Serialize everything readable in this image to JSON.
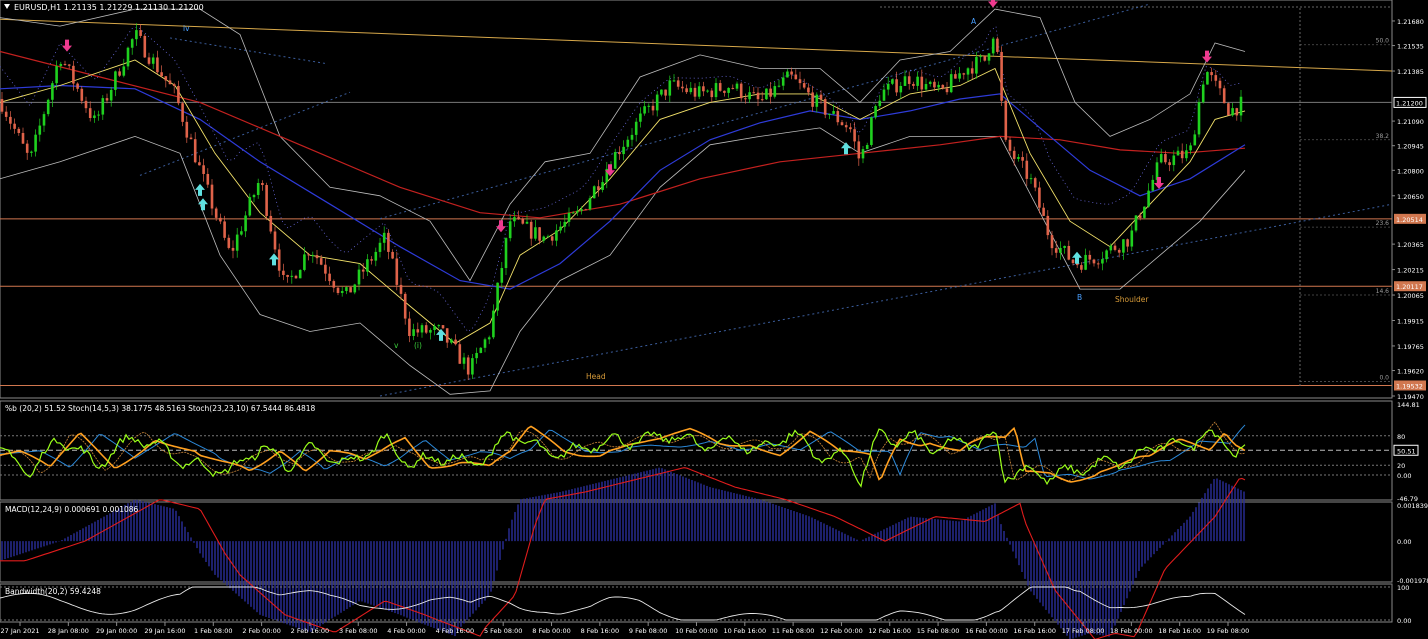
{
  "colors": {
    "background": "#000000",
    "frame": "#8a8a8a",
    "grid": "#404040",
    "bull": "#1fd11f",
    "bear": "#e0634a",
    "ma_fast": "#f3e26a",
    "ma_mid": "#2e3bd9",
    "ma_slow": "#c3211f",
    "bands": "#bdbdbd",
    "trend": "#d7a84a",
    "channel": "#3b5d9c",
    "level": "#d1774f",
    "arrow_up": "#5fe0e0",
    "arrow_down": "#ee3a8f",
    "fib_label": "#9b9b9b",
    "wave_label": "#4aa0ff",
    "pattern_label": "#d79b39",
    "pct_b": "#9aff1a",
    "stoch_fast": "#d08a3a",
    "stoch_slow": "#ffa020",
    "stoch_signal": "#2b88d8",
    "macd_hist": "#2a2f9a",
    "macd_signal": "#e01c1c",
    "bandwidth": "#e8e8e8"
  },
  "chart_data": [
    {
      "type": "line",
      "id": "price",
      "title": "EURUSD,H1  1.21135 1.21229 1.21130 1.21200",
      "symbol": "EURUSD,H1",
      "ohlc_header": [
        "1.21135",
        "1.21229",
        "1.21130",
        "1.21200"
      ],
      "y_ticks": [
        "1.21680",
        "1.21535",
        "1.21385",
        "1.21200",
        "1.21090",
        "1.20945",
        "1.20800",
        "1.20650",
        "1.20514",
        "1.20365",
        "1.20215",
        "1.20117",
        "1.20065",
        "1.19915",
        "1.19765",
        "1.19620",
        "1.19532",
        "1.19470"
      ],
      "ylim": [
        1.1947,
        1.2178
      ],
      "current_price": "1.21200",
      "price_levels": [
        {
          "label": "1.20514",
          "value": 1.20514
        },
        {
          "label": "1.20117",
          "value": 1.20117
        },
        {
          "label": "1.19532",
          "value": 1.19532
        }
      ],
      "fib_levels": [
        {
          "label": "50.0",
          "value": 1.2154
        },
        {
          "label": "38.2",
          "value": 1.2098
        },
        {
          "label": "23.6",
          "value": 1.20465
        },
        {
          "label": "14.6",
          "value": 1.20065
        },
        {
          "label": "0.0",
          "value": 1.19555
        }
      ],
      "x_labels": [
        "27 Jan 2021",
        "28 Jan 08:00",
        "29 Jan 00:00",
        "29 Jan 16:00",
        "1 Feb 08:00",
        "2 Feb 00:00",
        "2 Feb 16:00",
        "3 Feb 08:00",
        "4 Feb 00:00",
        "4 Feb 16:00",
        "5 Feb 08:00",
        "8 Feb 00:00",
        "8 Feb 16:00",
        "9 Feb 08:00",
        "10 Feb 00:00",
        "10 Feb 16:00",
        "11 Feb 08:00",
        "12 Feb 00:00",
        "12 Feb 16:00",
        "15 Feb 08:00",
        "16 Feb 00:00",
        "16 Feb 16:00",
        "17 Feb 08:00",
        "18 Feb 00:00",
        "18 Feb 16:00",
        "19 Feb 08:00"
      ],
      "annotations": [
        "iv",
        "v",
        "(i)",
        "A",
        "B",
        "Head",
        "Shoulder"
      ],
      "close_path": [
        [
          0,
          1.2122
        ],
        [
          30,
          1.2085
        ],
        [
          60,
          1.2148
        ],
        [
          95,
          1.2108
        ],
        [
          135,
          1.216
        ],
        [
          175,
          1.2125
        ],
        [
          200,
          1.208
        ],
        [
          230,
          1.203
        ],
        [
          260,
          1.2075
        ],
        [
          285,
          1.201
        ],
        [
          310,
          1.2035
        ],
        [
          345,
          1.2005
        ],
        [
          385,
          1.204
        ],
        [
          410,
          1.1985
        ],
        [
          440,
          1.1985
        ],
        [
          470,
          1.1962
        ],
        [
          490,
          1.1985
        ],
        [
          510,
          1.205
        ],
        [
          545,
          1.204
        ],
        [
          580,
          1.2055
        ],
        [
          610,
          1.2085
        ],
        [
          640,
          1.211
        ],
        [
          670,
          1.213
        ],
        [
          700,
          1.2125
        ],
        [
          730,
          1.213
        ],
        [
          760,
          1.212
        ],
        [
          790,
          1.2135
        ],
        [
          820,
          1.2118
        ],
        [
          850,
          1.2105
        ],
        [
          860,
          1.2085
        ],
        [
          880,
          1.2125
        ],
        [
          910,
          1.2135
        ],
        [
          940,
          1.2125
        ],
        [
          965,
          1.214
        ],
        [
          985,
          1.2145
        ],
        [
          995,
          1.2165
        ],
        [
          1005,
          1.2095
        ],
        [
          1030,
          1.2075
        ],
        [
          1050,
          1.204
        ],
        [
          1075,
          1.2025
        ],
        [
          1100,
          1.203
        ],
        [
          1130,
          1.204
        ],
        [
          1160,
          1.2085
        ],
        [
          1190,
          1.209
        ],
        [
          1205,
          1.214
        ],
        [
          1215,
          1.213
        ],
        [
          1230,
          1.2115
        ],
        [
          1245,
          1.212
        ]
      ],
      "ma_fast": [
        [
          0,
          1.212
        ],
        [
          60,
          1.213
        ],
        [
          135,
          1.2145
        ],
        [
          175,
          1.213
        ],
        [
          215,
          1.209
        ],
        [
          260,
          1.2055
        ],
        [
          310,
          1.203
        ],
        [
          360,
          1.2025
        ],
        [
          410,
          1.2
        ],
        [
          455,
          1.1978
        ],
        [
          490,
          1.199
        ],
        [
          520,
          1.203
        ],
        [
          560,
          1.2045
        ],
        [
          610,
          1.2075
        ],
        [
          660,
          1.211
        ],
        [
          710,
          1.212
        ],
        [
          760,
          1.2125
        ],
        [
          810,
          1.2125
        ],
        [
          860,
          1.211
        ],
        [
          910,
          1.2125
        ],
        [
          960,
          1.213
        ],
        [
          995,
          1.214
        ],
        [
          1030,
          1.209
        ],
        [
          1070,
          1.205
        ],
        [
          1110,
          1.2035
        ],
        [
          1150,
          1.206
        ],
        [
          1190,
          1.2085
        ],
        [
          1215,
          1.211
        ],
        [
          1245,
          1.2115
        ]
      ],
      "ma_mid": [
        [
          0,
          1.2128
        ],
        [
          60,
          1.213
        ],
        [
          135,
          1.2128
        ],
        [
          200,
          1.211
        ],
        [
          260,
          1.2085
        ],
        [
          330,
          1.206
        ],
        [
          400,
          1.2035
        ],
        [
          460,
          1.2015
        ],
        [
          510,
          1.201
        ],
        [
          560,
          1.2025
        ],
        [
          610,
          1.205
        ],
        [
          660,
          1.208
        ],
        [
          710,
          1.2098
        ],
        [
          760,
          1.2108
        ],
        [
          810,
          1.2115
        ],
        [
          860,
          1.211
        ],
        [
          910,
          1.2115
        ],
        [
          960,
          1.2122
        ],
        [
          1000,
          1.2125
        ],
        [
          1040,
          1.2105
        ],
        [
          1090,
          1.208
        ],
        [
          1140,
          1.2065
        ],
        [
          1190,
          1.2075
        ],
        [
          1245,
          1.2095
        ]
      ],
      "ma_slow": [
        [
          0,
          1.215
        ],
        [
          100,
          1.2135
        ],
        [
          200,
          1.212
        ],
        [
          300,
          1.2095
        ],
        [
          400,
          1.207
        ],
        [
          480,
          1.2055
        ],
        [
          540,
          1.2052
        ],
        [
          620,
          1.206
        ],
        [
          700,
          1.2075
        ],
        [
          780,
          1.2085
        ],
        [
          860,
          1.209
        ],
        [
          940,
          1.2095
        ],
        [
          1000,
          1.21
        ],
        [
          1060,
          1.2098
        ],
        [
          1120,
          1.2092
        ],
        [
          1180,
          1.209
        ],
        [
          1245,
          1.2093
        ]
      ],
      "band_upper": [
        [
          0,
          1.217
        ],
        [
          60,
          1.2165
        ],
        [
          135,
          1.2175
        ],
        [
          200,
          1.2175
        ],
        [
          240,
          1.216
        ],
        [
          280,
          1.21
        ],
        [
          330,
          1.207
        ],
        [
          380,
          1.2065
        ],
        [
          430,
          1.205
        ],
        [
          470,
          1.2015
        ],
        [
          510,
          1.206
        ],
        [
          545,
          1.2085
        ],
        [
          590,
          1.209
        ],
        [
          640,
          1.2135
        ],
        [
          700,
          1.2148
        ],
        [
          760,
          1.214
        ],
        [
          820,
          1.214
        ],
        [
          860,
          1.212
        ],
        [
          900,
          1.2145
        ],
        [
          950,
          1.215
        ],
        [
          995,
          1.2175
        ],
        [
          1040,
          1.217
        ],
        [
          1075,
          1.212
        ],
        [
          1110,
          1.21
        ],
        [
          1150,
          1.211
        ],
        [
          1190,
          1.2125
        ],
        [
          1215,
          1.2155
        ],
        [
          1245,
          1.215
        ]
      ],
      "band_lower": [
        [
          0,
          1.2075
        ],
        [
          60,
          1.2085
        ],
        [
          135,
          1.21
        ],
        [
          180,
          1.209
        ],
        [
          220,
          1.203
        ],
        [
          260,
          1.1995
        ],
        [
          310,
          1.1985
        ],
        [
          360,
          1.199
        ],
        [
          410,
          1.1965
        ],
        [
          450,
          1.1948
        ],
        [
          490,
          1.195
        ],
        [
          520,
          1.1985
        ],
        [
          560,
          1.2015
        ],
        [
          610,
          1.203
        ],
        [
          660,
          1.207
        ],
        [
          710,
          1.2095
        ],
        [
          760,
          1.21
        ],
        [
          820,
          1.2105
        ],
        [
          860,
          1.209
        ],
        [
          910,
          1.21
        ],
        [
          960,
          1.21
        ],
        [
          1000,
          1.21
        ],
        [
          1040,
          1.2055
        ],
        [
          1080,
          1.201
        ],
        [
          1120,
          1.201
        ],
        [
          1160,
          1.203
        ],
        [
          1200,
          1.205
        ],
        [
          1245,
          1.208
        ]
      ],
      "arrows_up": [
        [
          200,
          1.20685
        ],
        [
          203,
          1.206
        ],
        [
          274,
          1.20275
        ],
        [
          441,
          1.1983
        ],
        [
          846,
          1.2093
        ],
        [
          1077,
          1.20285
        ]
      ],
      "arrows_down": [
        [
          67,
          1.21535
        ],
        [
          501,
          1.2047
        ],
        [
          610,
          1.208
        ],
        [
          993,
          1.21795
        ],
        [
          1159,
          1.20725
        ],
        [
          1207,
          1.2147
        ]
      ]
    },
    {
      "type": "line",
      "id": "oscillator",
      "title": "%b (20,2) 51.52  Stoch(14,5,3) 38.1775 48.5163  Stoch(23,23,10) 67.5444 86.4818",
      "y_ticks": [
        "144.81",
        "80",
        "50.51",
        "20",
        "0.00",
        "-46.79"
      ],
      "ylim": [
        -46.79,
        144.81
      ],
      "current_value": "50.51"
    },
    {
      "type": "bar",
      "id": "macd",
      "title": "MACD(12,24,9) 0.000691 0.001086",
      "y_ticks": [
        "0.001839",
        "0.00",
        "-0.001978"
      ],
      "ylim": [
        -0.001978,
        0.001839
      ]
    },
    {
      "type": "line",
      "id": "bandwidth",
      "title": "Bandwidth(20,2) 59.4248",
      "y_ticks": [
        "100",
        "0.00"
      ],
      "ylim": [
        0,
        100
      ]
    }
  ]
}
